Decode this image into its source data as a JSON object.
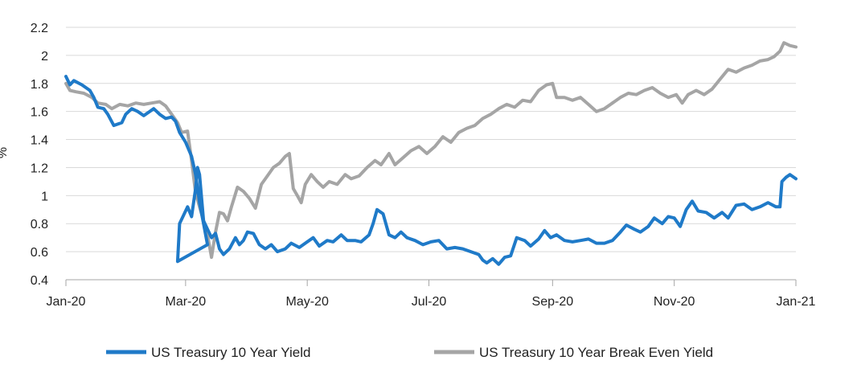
{
  "chart_data": {
    "type": "line",
    "ylabel": "%",
    "ylim": [
      0.4,
      2.2
    ],
    "yticks": [
      0.4,
      0.6,
      0.8,
      1.0,
      1.2,
      1.4,
      1.6,
      1.8,
      2.0,
      2.2
    ],
    "ytick_labels": [
      "0.4",
      "0.6",
      "0.8",
      "1",
      "1.2",
      "1.4",
      "1.6",
      "1.8",
      "2",
      "2.2"
    ],
    "xlim": [
      "2020-01-01",
      "2021-01-01"
    ],
    "xticks": [
      "2020-01-01",
      "2020-03-01",
      "2020-05-01",
      "2020-07-01",
      "2020-09-01",
      "2020-11-01",
      "2021-01-01"
    ],
    "xtick_labels": [
      "Jan-20",
      "Mar-20",
      "May-20",
      "Jul-20",
      "Sep-20",
      "Nov-20",
      "Jan-21"
    ],
    "grid": "horizontal",
    "legend_position": "bottom",
    "series": [
      {
        "name": "US Treasury 10 Year Yield",
        "color": "#1f7ac8",
        "points": [
          [
            "2020-01-01",
            1.85
          ],
          [
            "2020-01-03",
            1.79
          ],
          [
            "2020-01-05",
            1.82
          ],
          [
            "2020-01-09",
            1.79
          ],
          [
            "2020-01-13",
            1.75
          ],
          [
            "2020-01-15",
            1.7
          ],
          [
            "2020-01-17",
            1.63
          ],
          [
            "2020-01-20",
            1.62
          ],
          [
            "2020-01-22",
            1.58
          ],
          [
            "2020-01-25",
            1.5
          ],
          [
            "2020-01-29",
            1.52
          ],
          [
            "2020-01-31",
            1.58
          ],
          [
            "2020-02-03",
            1.62
          ],
          [
            "2020-02-06",
            1.6
          ],
          [
            "2020-02-09",
            1.57
          ],
          [
            "2020-02-12",
            1.6
          ],
          [
            "2020-02-14",
            1.62
          ],
          [
            "2020-02-17",
            1.58
          ],
          [
            "2020-02-20",
            1.55
          ],
          [
            "2020-02-23",
            1.56
          ],
          [
            "2020-02-25",
            1.53
          ],
          [
            "2020-02-27",
            1.45
          ],
          [
            "2020-03-01",
            1.38
          ],
          [
            "2020-03-04",
            1.28
          ],
          [
            "2020-03-06",
            1.15
          ],
          [
            "2020-03-08",
            0.95
          ],
          [
            "2020-03-10",
            0.8
          ],
          [
            "2020-03-12",
            0.65
          ],
          [
            "2020-02-26",
            0.53
          ],
          [
            "2020-02-27",
            0.8
          ],
          [
            "2020-03-02",
            0.92
          ],
          [
            "2020-03-04",
            0.85
          ],
          [
            "2020-03-06",
            1.05
          ],
          [
            "2020-03-07",
            1.2
          ],
          [
            "2020-03-08",
            1.15
          ],
          [
            "2020-03-10",
            0.82
          ],
          [
            "2020-03-12",
            0.76
          ],
          [
            "2020-03-14",
            0.7
          ],
          [
            "2020-03-16",
            0.73
          ],
          [
            "2020-03-18",
            0.62
          ],
          [
            "2020-03-20",
            0.58
          ],
          [
            "2020-03-23",
            0.62
          ],
          [
            "2020-03-26",
            0.7
          ],
          [
            "2020-03-28",
            0.65
          ],
          [
            "2020-03-30",
            0.68
          ],
          [
            "2020-04-01",
            0.74
          ],
          [
            "2020-04-04",
            0.73
          ],
          [
            "2020-04-07",
            0.65
          ],
          [
            "2020-04-10",
            0.62
          ],
          [
            "2020-04-13",
            0.65
          ],
          [
            "2020-04-16",
            0.6
          ],
          [
            "2020-04-20",
            0.62
          ],
          [
            "2020-04-23",
            0.66
          ],
          [
            "2020-04-27",
            0.63
          ],
          [
            "2020-04-30",
            0.66
          ],
          [
            "2020-05-04",
            0.7
          ],
          [
            "2020-05-07",
            0.64
          ],
          [
            "2020-05-11",
            0.68
          ],
          [
            "2020-05-14",
            0.67
          ],
          [
            "2020-05-18",
            0.72
          ],
          [
            "2020-05-21",
            0.68
          ],
          [
            "2020-05-25",
            0.68
          ],
          [
            "2020-05-28",
            0.67
          ],
          [
            "2020-06-01",
            0.72
          ],
          [
            "2020-06-03",
            0.8
          ],
          [
            "2020-06-05",
            0.9
          ],
          [
            "2020-06-08",
            0.87
          ],
          [
            "2020-06-11",
            0.72
          ],
          [
            "2020-06-14",
            0.7
          ],
          [
            "2020-06-17",
            0.74
          ],
          [
            "2020-06-20",
            0.7
          ],
          [
            "2020-06-24",
            0.68
          ],
          [
            "2020-06-28",
            0.65
          ],
          [
            "2020-07-02",
            0.67
          ],
          [
            "2020-07-06",
            0.68
          ],
          [
            "2020-07-10",
            0.62
          ],
          [
            "2020-07-14",
            0.63
          ],
          [
            "2020-07-18",
            0.62
          ],
          [
            "2020-07-22",
            0.6
          ],
          [
            "2020-07-26",
            0.58
          ],
          [
            "2020-07-28",
            0.54
          ],
          [
            "2020-07-30",
            0.52
          ],
          [
            "2020-08-02",
            0.55
          ],
          [
            "2020-08-05",
            0.51
          ],
          [
            "2020-08-08",
            0.56
          ],
          [
            "2020-08-11",
            0.57
          ],
          [
            "2020-08-14",
            0.7
          ],
          [
            "2020-08-18",
            0.68
          ],
          [
            "2020-08-21",
            0.64
          ],
          [
            "2020-08-25",
            0.69
          ],
          [
            "2020-08-28",
            0.75
          ],
          [
            "2020-08-31",
            0.7
          ],
          [
            "2020-09-03",
            0.72
          ],
          [
            "2020-09-07",
            0.68
          ],
          [
            "2020-09-11",
            0.67
          ],
          [
            "2020-09-15",
            0.68
          ],
          [
            "2020-09-19",
            0.69
          ],
          [
            "2020-09-23",
            0.66
          ],
          [
            "2020-09-27",
            0.66
          ],
          [
            "2020-10-01",
            0.68
          ],
          [
            "2020-10-05",
            0.74
          ],
          [
            "2020-10-08",
            0.79
          ],
          [
            "2020-10-12",
            0.76
          ],
          [
            "2020-10-15",
            0.74
          ],
          [
            "2020-10-19",
            0.78
          ],
          [
            "2020-10-22",
            0.84
          ],
          [
            "2020-10-26",
            0.8
          ],
          [
            "2020-10-29",
            0.85
          ],
          [
            "2020-11-01",
            0.84
          ],
          [
            "2020-11-04",
            0.78
          ],
          [
            "2020-11-07",
            0.9
          ],
          [
            "2020-11-10",
            0.96
          ],
          [
            "2020-11-13",
            0.89
          ],
          [
            "2020-11-17",
            0.88
          ],
          [
            "2020-11-21",
            0.84
          ],
          [
            "2020-11-25",
            0.88
          ],
          [
            "2020-11-28",
            0.84
          ],
          [
            "2020-12-02",
            0.93
          ],
          [
            "2020-12-06",
            0.94
          ],
          [
            "2020-12-10",
            0.9
          ],
          [
            "2020-12-14",
            0.92
          ],
          [
            "2020-12-18",
            0.95
          ],
          [
            "2020-12-22",
            0.92
          ],
          [
            "2020-12-24",
            0.92
          ],
          [
            "2020-12-25",
            1.1
          ],
          [
            "2020-12-27",
            1.13
          ],
          [
            "2020-12-29",
            1.15
          ],
          [
            "2021-01-01",
            1.12
          ]
        ]
      },
      {
        "name": "US Treasury 10 Year Break Even Yield",
        "color": "#a5a5a5",
        "points": [
          [
            "2020-01-01",
            1.8
          ],
          [
            "2020-01-03",
            1.75
          ],
          [
            "2020-01-06",
            1.74
          ],
          [
            "2020-01-10",
            1.73
          ],
          [
            "2020-01-14",
            1.7
          ],
          [
            "2020-01-17",
            1.66
          ],
          [
            "2020-01-21",
            1.65
          ],
          [
            "2020-01-24",
            1.62
          ],
          [
            "2020-01-28",
            1.65
          ],
          [
            "2020-02-01",
            1.64
          ],
          [
            "2020-02-05",
            1.66
          ],
          [
            "2020-02-09",
            1.65
          ],
          [
            "2020-02-13",
            1.66
          ],
          [
            "2020-02-17",
            1.67
          ],
          [
            "2020-02-20",
            1.64
          ],
          [
            "2020-02-23",
            1.58
          ],
          [
            "2020-02-26",
            1.52
          ],
          [
            "2020-02-28",
            1.45
          ],
          [
            "2020-03-02",
            1.46
          ],
          [
            "2020-03-04",
            1.25
          ],
          [
            "2020-03-06",
            1.02
          ],
          [
            "2020-03-08",
            0.92
          ],
          [
            "2020-03-10",
            0.82
          ],
          [
            "2020-03-12",
            0.72
          ],
          [
            "2020-03-14",
            0.56
          ],
          [
            "2020-03-16",
            0.74
          ],
          [
            "2020-03-18",
            0.88
          ],
          [
            "2020-03-20",
            0.87
          ],
          [
            "2020-03-22",
            0.82
          ],
          [
            "2020-03-24",
            0.92
          ],
          [
            "2020-03-27",
            1.06
          ],
          [
            "2020-03-30",
            1.03
          ],
          [
            "2020-04-02",
            0.98
          ],
          [
            "2020-04-05",
            0.91
          ],
          [
            "2020-04-08",
            1.08
          ],
          [
            "2020-04-11",
            1.14
          ],
          [
            "2020-04-14",
            1.2
          ],
          [
            "2020-04-17",
            1.23
          ],
          [
            "2020-04-20",
            1.28
          ],
          [
            "2020-04-22",
            1.3
          ],
          [
            "2020-04-24",
            1.05
          ],
          [
            "2020-04-26",
            1.0
          ],
          [
            "2020-04-28",
            0.95
          ],
          [
            "2020-04-30",
            1.08
          ],
          [
            "2020-05-03",
            1.15
          ],
          [
            "2020-05-06",
            1.1
          ],
          [
            "2020-05-09",
            1.06
          ],
          [
            "2020-05-12",
            1.1
          ],
          [
            "2020-05-16",
            1.08
          ],
          [
            "2020-05-20",
            1.15
          ],
          [
            "2020-05-23",
            1.12
          ],
          [
            "2020-05-27",
            1.14
          ],
          [
            "2020-05-31",
            1.2
          ],
          [
            "2020-06-04",
            1.25
          ],
          [
            "2020-06-07",
            1.22
          ],
          [
            "2020-06-11",
            1.3
          ],
          [
            "2020-06-14",
            1.22
          ],
          [
            "2020-06-18",
            1.27
          ],
          [
            "2020-06-22",
            1.32
          ],
          [
            "2020-06-26",
            1.35
          ],
          [
            "2020-06-30",
            1.3
          ],
          [
            "2020-07-04",
            1.35
          ],
          [
            "2020-07-08",
            1.42
          ],
          [
            "2020-07-12",
            1.38
          ],
          [
            "2020-07-16",
            1.45
          ],
          [
            "2020-07-20",
            1.48
          ],
          [
            "2020-07-24",
            1.5
          ],
          [
            "2020-07-28",
            1.55
          ],
          [
            "2020-08-01",
            1.58
          ],
          [
            "2020-08-05",
            1.62
          ],
          [
            "2020-08-09",
            1.65
          ],
          [
            "2020-08-13",
            1.63
          ],
          [
            "2020-08-17",
            1.68
          ],
          [
            "2020-08-21",
            1.67
          ],
          [
            "2020-08-25",
            1.75
          ],
          [
            "2020-08-29",
            1.79
          ],
          [
            "2020-09-01",
            1.8
          ],
          [
            "2020-09-03",
            1.7
          ],
          [
            "2020-09-07",
            1.7
          ],
          [
            "2020-09-11",
            1.68
          ],
          [
            "2020-09-15",
            1.7
          ],
          [
            "2020-09-19",
            1.65
          ],
          [
            "2020-09-23",
            1.6
          ],
          [
            "2020-09-27",
            1.62
          ],
          [
            "2020-10-01",
            1.66
          ],
          [
            "2020-10-05",
            1.7
          ],
          [
            "2020-10-09",
            1.73
          ],
          [
            "2020-10-13",
            1.72
          ],
          [
            "2020-10-17",
            1.75
          ],
          [
            "2020-10-21",
            1.77
          ],
          [
            "2020-10-25",
            1.73
          ],
          [
            "2020-10-29",
            1.7
          ],
          [
            "2020-11-02",
            1.72
          ],
          [
            "2020-11-05",
            1.66
          ],
          [
            "2020-11-08",
            1.72
          ],
          [
            "2020-11-12",
            1.75
          ],
          [
            "2020-11-16",
            1.72
          ],
          [
            "2020-11-20",
            1.76
          ],
          [
            "2020-11-24",
            1.83
          ],
          [
            "2020-11-28",
            1.9
          ],
          [
            "2020-12-02",
            1.88
          ],
          [
            "2020-12-06",
            1.91
          ],
          [
            "2020-12-10",
            1.93
          ],
          [
            "2020-12-14",
            1.96
          ],
          [
            "2020-12-18",
            1.97
          ],
          [
            "2020-12-21",
            1.99
          ],
          [
            "2020-12-24",
            2.03
          ],
          [
            "2020-12-26",
            2.09
          ],
          [
            "2020-12-29",
            2.07
          ],
          [
            "2021-01-01",
            2.06
          ]
        ]
      }
    ]
  }
}
